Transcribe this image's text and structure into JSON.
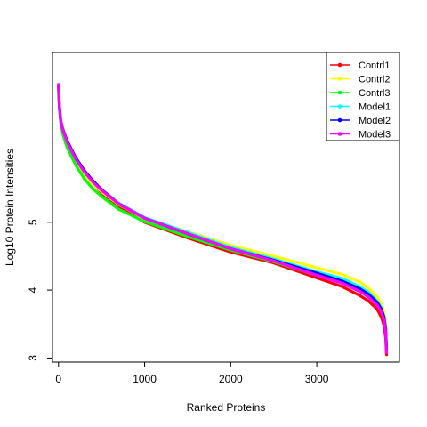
{
  "chart_data": {
    "type": "line",
    "xlabel": "Ranked Proteins",
    "ylabel": "Log10 Protein Intensities",
    "xlim": [
      -70,
      3960
    ],
    "ylim": [
      2.94,
      7.5
    ],
    "x_ticks": [
      0,
      1000,
      2000,
      3000
    ],
    "x_tick_labels": [
      "0",
      "1000",
      "2000",
      "3000"
    ],
    "y_ticks": [
      3,
      4,
      5
    ],
    "y_tick_labels": [
      "3",
      "4",
      "5"
    ],
    "grid": false,
    "legend_position": "top-right",
    "series": [
      {
        "name": "Contrl1",
        "color": "#FF0000",
        "x": [
          0,
          10,
          25,
          50,
          100,
          200,
          300,
          400,
          500,
          700,
          1000,
          1500,
          2000,
          2500,
          3000,
          3300,
          3500,
          3600,
          3700,
          3750,
          3780,
          3800,
          3810
        ],
        "values": [
          6.97,
          6.7,
          6.5,
          6.35,
          6.17,
          5.92,
          5.73,
          5.57,
          5.43,
          5.22,
          5.0,
          4.77,
          4.56,
          4.4,
          4.18,
          4.05,
          3.92,
          3.84,
          3.72,
          3.6,
          3.48,
          3.3,
          3.05
        ]
      },
      {
        "name": "Contrl2",
        "color": "#FFFF00",
        "x": [
          0,
          10,
          25,
          50,
          100,
          200,
          300,
          400,
          500,
          700,
          1000,
          1500,
          2000,
          2500,
          3000,
          3300,
          3500,
          3600,
          3700,
          3750,
          3780,
          3800,
          3810
        ],
        "values": [
          7.0,
          6.72,
          6.51,
          6.35,
          6.15,
          5.88,
          5.7,
          5.56,
          5.45,
          5.26,
          5.06,
          4.86,
          4.66,
          4.5,
          4.33,
          4.23,
          4.12,
          4.03,
          3.9,
          3.8,
          3.68,
          3.5,
          3.2
        ]
      },
      {
        "name": "Contrl3",
        "color": "#00FF00",
        "x": [
          0,
          10,
          25,
          50,
          100,
          200,
          300,
          400,
          500,
          700,
          1000,
          1500,
          2000,
          2500,
          3000,
          3300,
          3500,
          3600,
          3700,
          3750,
          3780,
          3800,
          3810
        ],
        "values": [
          6.96,
          6.68,
          6.47,
          6.3,
          6.1,
          5.84,
          5.64,
          5.49,
          5.38,
          5.19,
          5.01,
          4.79,
          4.59,
          4.42,
          4.22,
          4.12,
          4.0,
          3.92,
          3.8,
          3.7,
          3.58,
          3.4,
          3.15
        ]
      },
      {
        "name": "Model1",
        "color": "#00FFFF",
        "x": [
          0,
          10,
          25,
          50,
          100,
          200,
          300,
          400,
          500,
          700,
          1000,
          1500,
          2000,
          2500,
          3000,
          3300,
          3500,
          3600,
          3700,
          3750,
          3780,
          3800,
          3810
        ],
        "values": [
          7.02,
          6.73,
          6.52,
          6.36,
          6.19,
          5.93,
          5.74,
          5.6,
          5.48,
          5.28,
          5.07,
          4.85,
          4.63,
          4.46,
          4.27,
          4.17,
          4.05,
          3.97,
          3.84,
          3.74,
          3.62,
          3.45,
          3.18
        ]
      },
      {
        "name": "Model2",
        "color": "#0000FF",
        "x": [
          0,
          10,
          25,
          50,
          100,
          200,
          300,
          400,
          500,
          700,
          1000,
          1500,
          2000,
          2500,
          3000,
          3300,
          3500,
          3600,
          3700,
          3750,
          3780,
          3800,
          3810
        ],
        "values": [
          7.0,
          6.71,
          6.5,
          6.37,
          6.2,
          5.95,
          5.76,
          5.61,
          5.48,
          5.27,
          5.06,
          4.83,
          4.61,
          4.44,
          4.25,
          4.13,
          4.02,
          3.94,
          3.82,
          3.72,
          3.6,
          3.42,
          3.12
        ]
      },
      {
        "name": "Model3",
        "color": "#FF00FF",
        "x": [
          0,
          10,
          25,
          50,
          100,
          200,
          300,
          400,
          500,
          700,
          1000,
          1500,
          2000,
          2500,
          3000,
          3300,
          3500,
          3600,
          3700,
          3750,
          3780,
          3800,
          3810
        ],
        "values": [
          7.03,
          6.72,
          6.5,
          6.36,
          6.18,
          5.93,
          5.74,
          5.59,
          5.47,
          5.27,
          5.06,
          4.83,
          4.61,
          4.43,
          4.22,
          4.1,
          3.98,
          3.9,
          3.78,
          3.68,
          3.56,
          3.38,
          3.08
        ]
      }
    ]
  }
}
